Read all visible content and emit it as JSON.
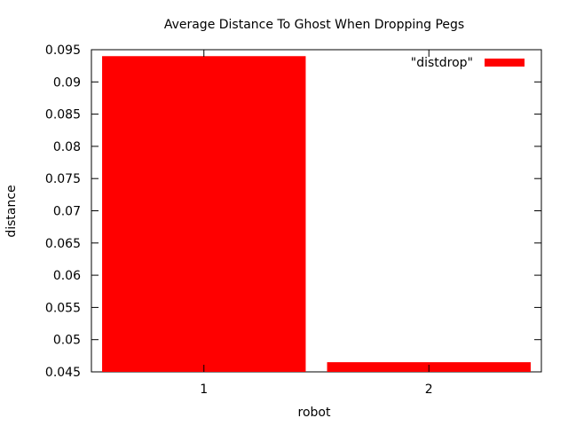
{
  "chart_data": {
    "type": "bar",
    "title": "Average Distance To Ghost When Dropping Pegs",
    "xlabel": "robot",
    "ylabel": "distance",
    "categories": [
      "1",
      "2"
    ],
    "series": [
      {
        "name": "\"distdrop\"",
        "values": [
          0.094,
          0.0465
        ],
        "color": "#ff0000"
      }
    ],
    "ylim": [
      0.045,
      0.095
    ],
    "yticks": [
      "0.045",
      "0.05",
      "0.055",
      "0.06",
      "0.065",
      "0.07",
      "0.075",
      "0.08",
      "0.085",
      "0.09",
      "0.095"
    ],
    "legend_position": "top-right",
    "grid": false
  }
}
